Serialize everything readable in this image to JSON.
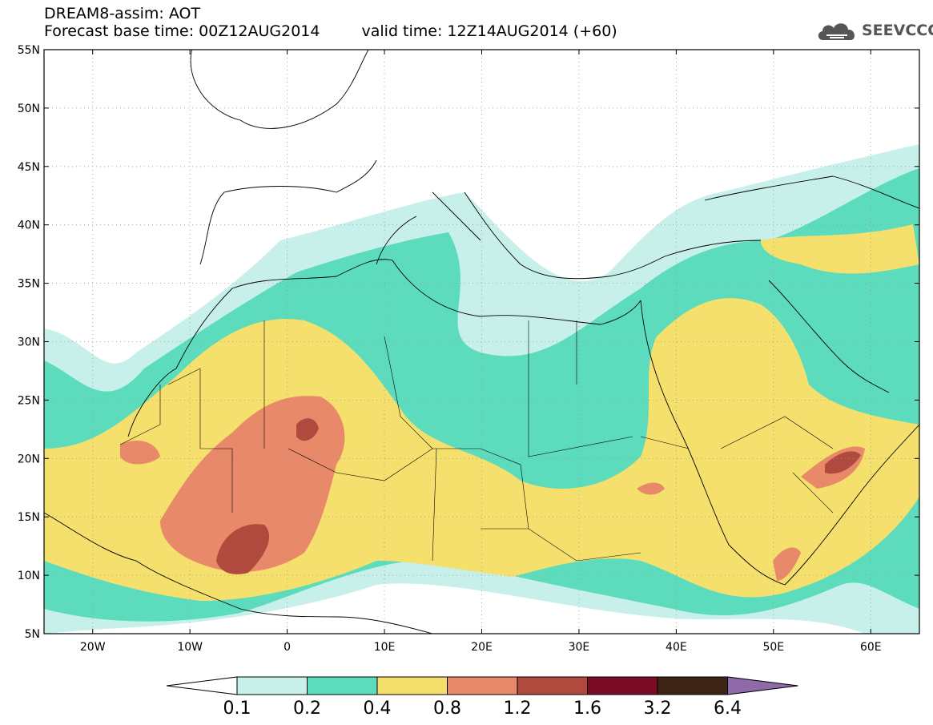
{
  "header": {
    "model": "DREAM8-assim: AOT",
    "base_time": "Forecast base time: 00Z12AUG2014",
    "valid_time": "valid time: 12Z14AUG2014 (+60)"
  },
  "logo": {
    "text": "SEEVCCC",
    "icon": "cloud-icon"
  },
  "map": {
    "lon_range": [
      -25,
      65
    ],
    "lat_range": [
      5,
      55
    ],
    "lat_ticks": [
      {
        "value": 55,
        "label": "55N"
      },
      {
        "value": 50,
        "label": "50N"
      },
      {
        "value": 45,
        "label": "45N"
      },
      {
        "value": 40,
        "label": "40N"
      },
      {
        "value": 35,
        "label": "35N"
      },
      {
        "value": 30,
        "label": "30N"
      },
      {
        "value": 25,
        "label": "25N"
      },
      {
        "value": 20,
        "label": "20N"
      },
      {
        "value": 15,
        "label": "15N"
      },
      {
        "value": 10,
        "label": "10N"
      },
      {
        "value": 5,
        "label": "5N"
      }
    ],
    "lon_ticks": [
      {
        "value": -20,
        "label": "20W"
      },
      {
        "value": -10,
        "label": "10W"
      },
      {
        "value": 0,
        "label": "0"
      },
      {
        "value": 10,
        "label": "10E"
      },
      {
        "value": 20,
        "label": "20E"
      },
      {
        "value": 30,
        "label": "30E"
      },
      {
        "value": 40,
        "label": "40E"
      },
      {
        "value": 50,
        "label": "50E"
      },
      {
        "value": 60,
        "label": "60E"
      }
    ],
    "gridlines": true
  },
  "colorbar": {
    "labels": [
      "0.1",
      "0.2",
      "0.4",
      "0.8",
      "1.2",
      "1.6",
      "3.2",
      "6.4"
    ],
    "low_color": "#ffffff",
    "colors": [
      "#c8f0ea",
      "#5cdcbc",
      "#f5e06e",
      "#e8896a",
      "#b04a3e",
      "#7a0a26",
      "#3e2414"
    ],
    "high_color": "#8e6aa8"
  }
}
